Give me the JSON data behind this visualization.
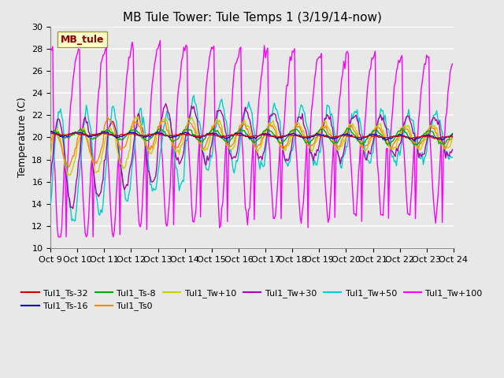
{
  "title": "MB Tule Tower: Tule Temps 1 (3/19/14-now)",
  "ylabel": "Temperature (C)",
  "ylim": [
    10,
    30
  ],
  "yticks": [
    10,
    12,
    14,
    16,
    18,
    20,
    22,
    24,
    26,
    28,
    30
  ],
  "xtick_labels": [
    "Oct 9",
    "Oct 10",
    "Oct 11",
    "Oct 12",
    "Oct 13",
    "Oct 14",
    "Oct 15",
    "Oct 16",
    "Oct 17",
    "Oct 18",
    "Oct 19",
    "Oct 20",
    "Oct 21",
    "Oct 22",
    "Oct 23",
    "Oct 24"
  ],
  "plot_bg": "#e8e8e8",
  "fig_bg": "#e8e8e8",
  "grid_color": "#ffffff",
  "series_colors": {
    "Tul1_Ts-32": "#cc0000",
    "Tul1_Ts-16": "#0000cc",
    "Tul1_Ts-8": "#00aa00",
    "Tul1_Ts0": "#ff8800",
    "Tul1_Tw+10": "#cccc00",
    "Tul1_Tw+30": "#aa00aa",
    "Tul1_Tw+50": "#00cccc",
    "Tul1_Tw+100": "#ff00ff"
  },
  "legend_label": "MB_tule",
  "legend_label_color": "#880000",
  "legend_box_bg": "#ffffcc",
  "legend_box_border": "#999944",
  "figsize": [
    6.4,
    4.8
  ],
  "dpi": 100,
  "title_fontsize": 11,
  "axis_fontsize": 9,
  "tick_fontsize": 8,
  "legend_fontsize": 8
}
